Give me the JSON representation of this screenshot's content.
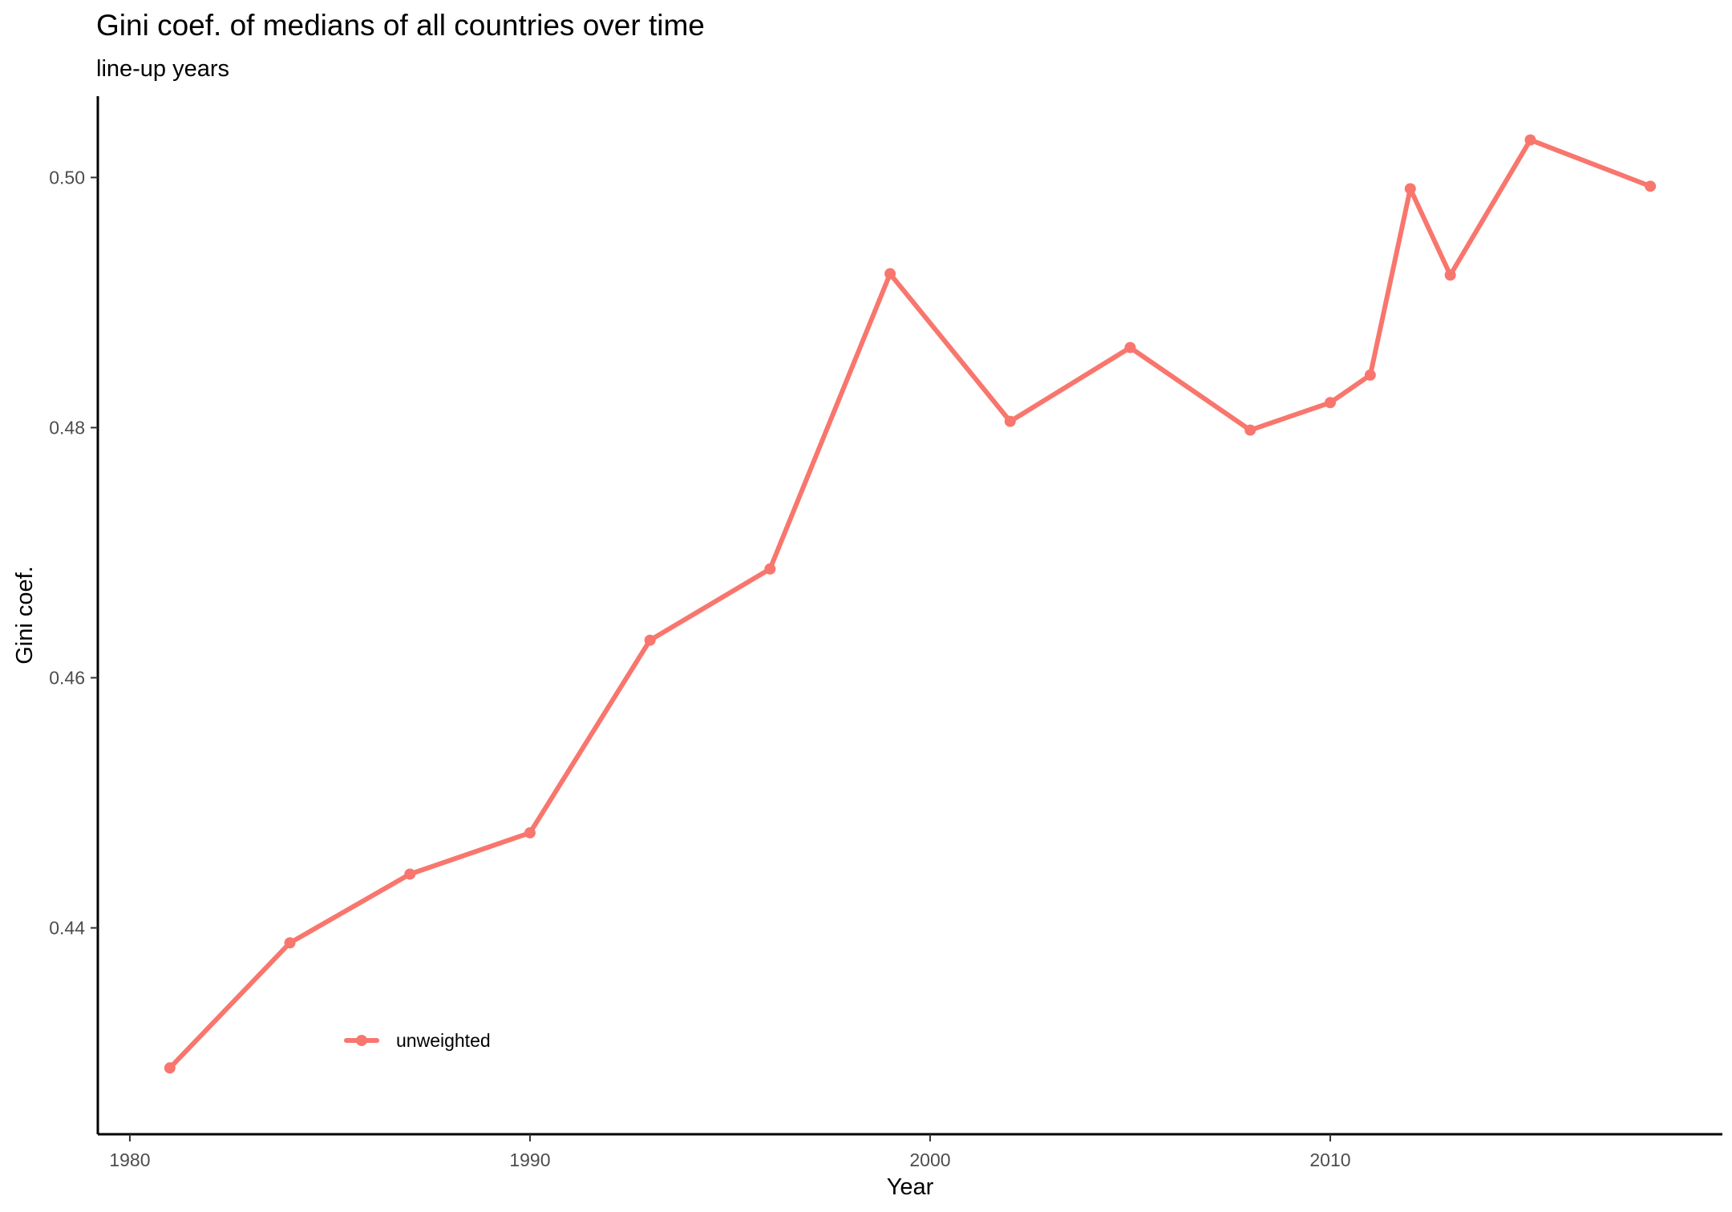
{
  "chart_data": {
    "type": "line",
    "title": "Gini coef. of medians of all countries over time",
    "subtitle": "line-up years",
    "xlabel": "Year",
    "ylabel": "Gini coef.",
    "xlim": [
      1979.2,
      2019.8
    ],
    "ylim": [
      0.4235,
      0.5065
    ],
    "x_ticks": [
      1980,
      1990,
      2000,
      2010
    ],
    "y_ticks": [
      0.44,
      0.46,
      0.48,
      0.5
    ],
    "x_tick_labels": [
      "1980",
      "1990",
      "2000",
      "2010"
    ],
    "y_tick_labels": [
      "0.44",
      "0.46",
      "0.48",
      "0.50"
    ],
    "grid": false,
    "legend_position": "bottom-left",
    "series": [
      {
        "name": "unweighted",
        "color": "#f8766d",
        "x": [
          1981,
          1984,
          1987,
          1990,
          1993,
          1996,
          1999,
          2002,
          2005,
          2008,
          2010,
          2011,
          2012,
          2013,
          2015,
          2018
        ],
        "y": [
          0.4288,
          0.4388,
          0.4443,
          0.4476,
          0.463,
          0.4687,
          0.4923,
          0.4805,
          0.4864,
          0.4798,
          0.482,
          0.4842,
          0.4991,
          0.4922,
          0.503,
          0.4993
        ]
      }
    ]
  }
}
